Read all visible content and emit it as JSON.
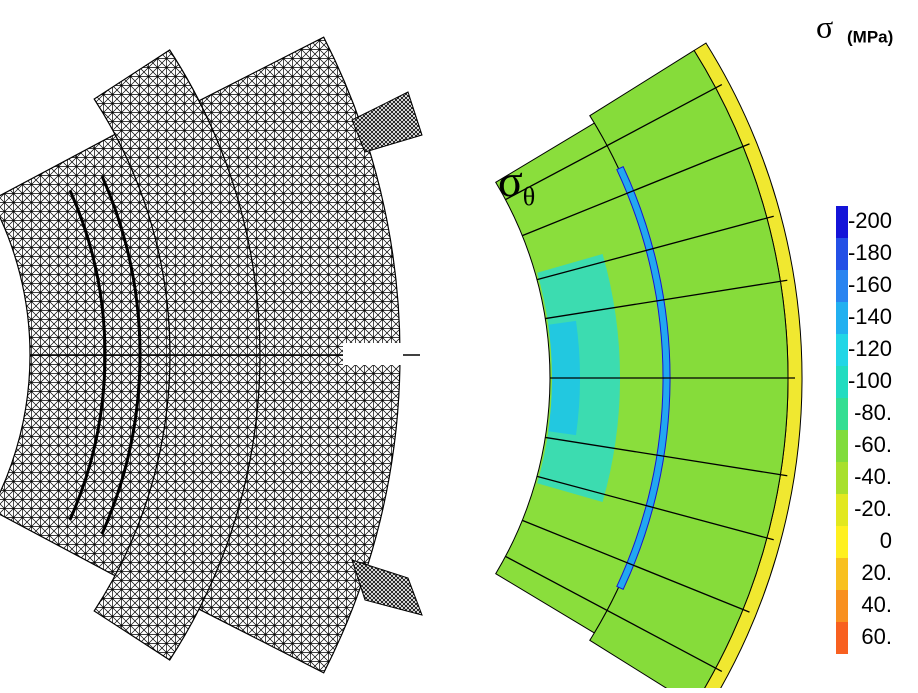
{
  "stress_label": {
    "symbol": "σ",
    "subscript": "θ"
  },
  "colorbar": {
    "symbol": "σ",
    "unit": "(MPa)",
    "entries": [
      {
        "label": "-200",
        "color": "#1414d8"
      },
      {
        "label": "-180",
        "color": "#2450e6"
      },
      {
        "label": "-160",
        "color": "#2a84f0"
      },
      {
        "label": "-140",
        "color": "#22b0f0"
      },
      {
        "label": "-120",
        "color": "#22d6e6"
      },
      {
        "label": "-100",
        "color": "#22dcc0"
      },
      {
        "label": "-80.",
        "color": "#34de92"
      },
      {
        "label": "-60.",
        "color": "#80dc3c"
      },
      {
        "label": "-40.",
        "color": "#a8e02c"
      },
      {
        "label": "-20.",
        "color": "#e2e820"
      },
      {
        "label": "0",
        "color": "#fff020"
      },
      {
        "label": "20.",
        "color": "#f8c020"
      },
      {
        "label": "40.",
        "color": "#f89020"
      },
      {
        "label": "60.",
        "color": "#f86020"
      }
    ]
  }
}
